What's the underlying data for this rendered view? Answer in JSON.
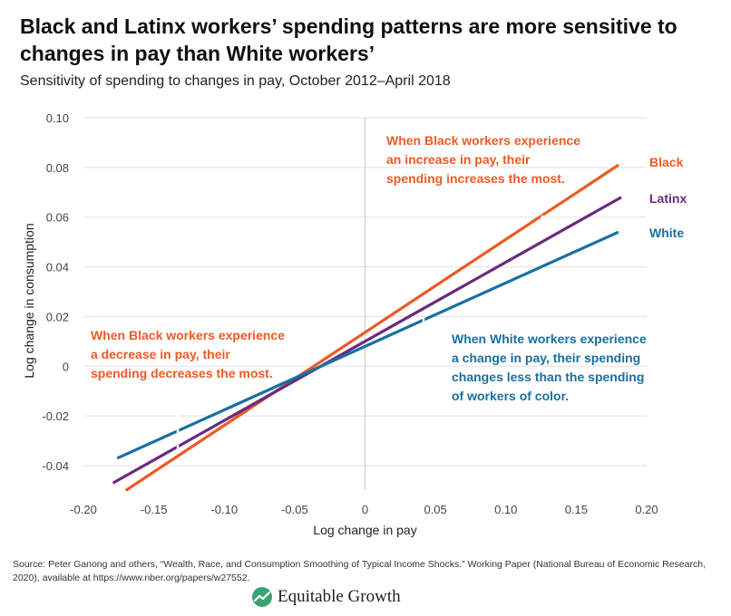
{
  "title": "Black and Latinx workers’ spending patterns are more sensitive to changes in pay than White workers’",
  "subtitle": "Sensitivity of spending to changes in pay, October 2012–April 2018",
  "chart_data": {
    "type": "line",
    "xlabel": "Log change in pay",
    "ylabel": "Log change in consumption",
    "xlim": [
      -0.2,
      0.2
    ],
    "ylim": [
      -0.05,
      0.1
    ],
    "x_ticks": [
      "-0.20",
      "-0.15",
      "-0.10",
      "-0.05",
      "0",
      "0.05",
      "0.10",
      "0.15",
      "0.20"
    ],
    "y_ticks": [
      "-0.04",
      "-0.02",
      "0",
      "0.02",
      "0.04",
      "0.06",
      "0.08",
      "0.10"
    ],
    "grid": "horizontal",
    "series": [
      {
        "name": "Black",
        "color": "#ec5a24",
        "x": [
          -0.17,
          0.18
        ],
        "y": [
          -0.05,
          0.081
        ]
      },
      {
        "name": "Latinx",
        "color": "#6b2a7f",
        "x": [
          -0.179,
          0.182
        ],
        "y": [
          -0.047,
          0.068
        ]
      },
      {
        "name": "White",
        "color": "#1a6fa1",
        "x": [
          -0.176,
          0.18
        ],
        "y": [
          -0.037,
          0.054
        ]
      }
    ],
    "annotations": [
      {
        "color": "#ec5a24",
        "lines": [
          "When Black workers experience",
          "an increase in pay, their",
          "spending increases the most."
        ]
      },
      {
        "color": "#ec5a24",
        "lines": [
          "When Black workers experience",
          "a decrease in pay, their",
          "spending decreases the most."
        ]
      },
      {
        "color": "#1a6fa1",
        "lines": [
          "When White workers experience",
          "a change in pay, their spending",
          "changes less than the spending",
          "of workers of color."
        ]
      }
    ]
  },
  "source": "Source: Peter Ganong and others, “Wealth, Race, and Consumption Smoothing of Typical Income Shocks.” Working Paper (National Bureau of Economic Research, 2020), available at https://www.nber.org/papers/w27552.",
  "logo": {
    "text": "Equitable Growth",
    "color": "#3aa374"
  }
}
